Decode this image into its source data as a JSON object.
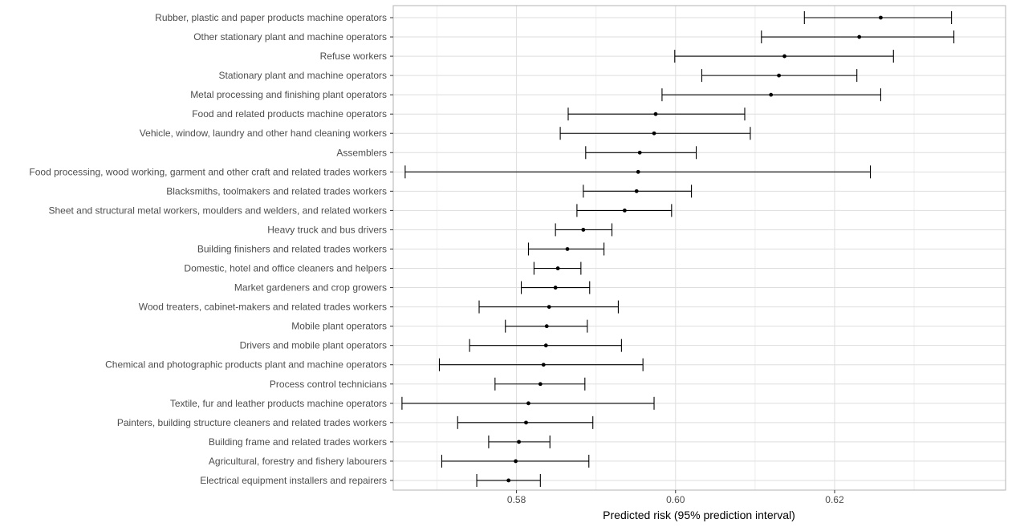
{
  "chart_data": {
    "type": "scatter",
    "xlabel": "Predicted risk (95% prediction interval)",
    "ylabel": "",
    "xlim": [
      0.5645,
      0.6415
    ],
    "x_ticks": [
      0.58,
      0.6,
      0.62
    ],
    "x_tick_labels": [
      "0.58",
      "0.60",
      "0.62"
    ],
    "grid": true,
    "colors": {
      "panel_border": "#b3b3b3",
      "grid_major": "#dedede",
      "grid_minor": "#eeeeee",
      "marks": "#000000"
    },
    "points": [
      {
        "label": "Rubber, plastic and paper products machine operators",
        "estimate": 0.6258,
        "lower": 0.6162,
        "upper": 0.6347
      },
      {
        "label": "Other stationary plant and machine operators",
        "estimate": 0.6231,
        "lower": 0.6108,
        "upper": 0.635
      },
      {
        "label": "Refuse workers",
        "estimate": 0.6137,
        "lower": 0.5999,
        "upper": 0.6274
      },
      {
        "label": "Stationary plant and machine operators",
        "estimate": 0.613,
        "lower": 0.6033,
        "upper": 0.6228
      },
      {
        "label": "Metal processing and finishing plant operators",
        "estimate": 0.612,
        "lower": 0.5983,
        "upper": 0.6258
      },
      {
        "label": "Food and related products machine operators",
        "estimate": 0.5975,
        "lower": 0.5865,
        "upper": 0.6087
      },
      {
        "label": "Vehicle, window, laundry and other hand cleaning workers",
        "estimate": 0.5973,
        "lower": 0.5855,
        "upper": 0.6094
      },
      {
        "label": "Assemblers",
        "estimate": 0.5955,
        "lower": 0.5887,
        "upper": 0.6026
      },
      {
        "label": "Food processing, wood working, garment and other craft and related trades workers",
        "estimate": 0.5953,
        "lower": 0.566,
        "upper": 0.6245
      },
      {
        "label": "Blacksmiths, toolmakers and related trades workers",
        "estimate": 0.5951,
        "lower": 0.5884,
        "upper": 0.602
      },
      {
        "label": "Sheet and structural metal workers, moulders and welders, and related workers",
        "estimate": 0.5936,
        "lower": 0.5876,
        "upper": 0.5995
      },
      {
        "label": "Heavy truck and bus drivers",
        "estimate": 0.5884,
        "lower": 0.5849,
        "upper": 0.592
      },
      {
        "label": "Building finishers and related trades workers",
        "estimate": 0.5864,
        "lower": 0.5815,
        "upper": 0.591
      },
      {
        "label": "Domestic, hotel and office cleaners and helpers",
        "estimate": 0.5852,
        "lower": 0.5822,
        "upper": 0.5881
      },
      {
        "label": "Market gardeners and crop growers",
        "estimate": 0.5849,
        "lower": 0.5806,
        "upper": 0.5892
      },
      {
        "label": "Wood treaters, cabinet-makers and related trades workers",
        "estimate": 0.5841,
        "lower": 0.5753,
        "upper": 0.5928
      },
      {
        "label": "Mobile plant operators",
        "estimate": 0.5838,
        "lower": 0.5786,
        "upper": 0.5889
      },
      {
        "label": "Drivers and mobile plant operators",
        "estimate": 0.5837,
        "lower": 0.5741,
        "upper": 0.5932
      },
      {
        "label": "Chemical and photographic products plant and machine operators",
        "estimate": 0.5834,
        "lower": 0.5703,
        "upper": 0.5959
      },
      {
        "label": "Process control technicians",
        "estimate": 0.583,
        "lower": 0.5773,
        "upper": 0.5886
      },
      {
        "label": "Textile, fur and leather products machine operators",
        "estimate": 0.5815,
        "lower": 0.5656,
        "upper": 0.5973
      },
      {
        "label": "Painters, building structure cleaners and related trades workers",
        "estimate": 0.5812,
        "lower": 0.5726,
        "upper": 0.5896
      },
      {
        "label": "Building frame and related trades workers",
        "estimate": 0.5803,
        "lower": 0.5765,
        "upper": 0.5842
      },
      {
        "label": "Agricultural, forestry and fishery labourers",
        "estimate": 0.5799,
        "lower": 0.5706,
        "upper": 0.5891
      },
      {
        "label": "Electrical equipment installers and repairers",
        "estimate": 0.579,
        "lower": 0.575,
        "upper": 0.583
      }
    ]
  }
}
